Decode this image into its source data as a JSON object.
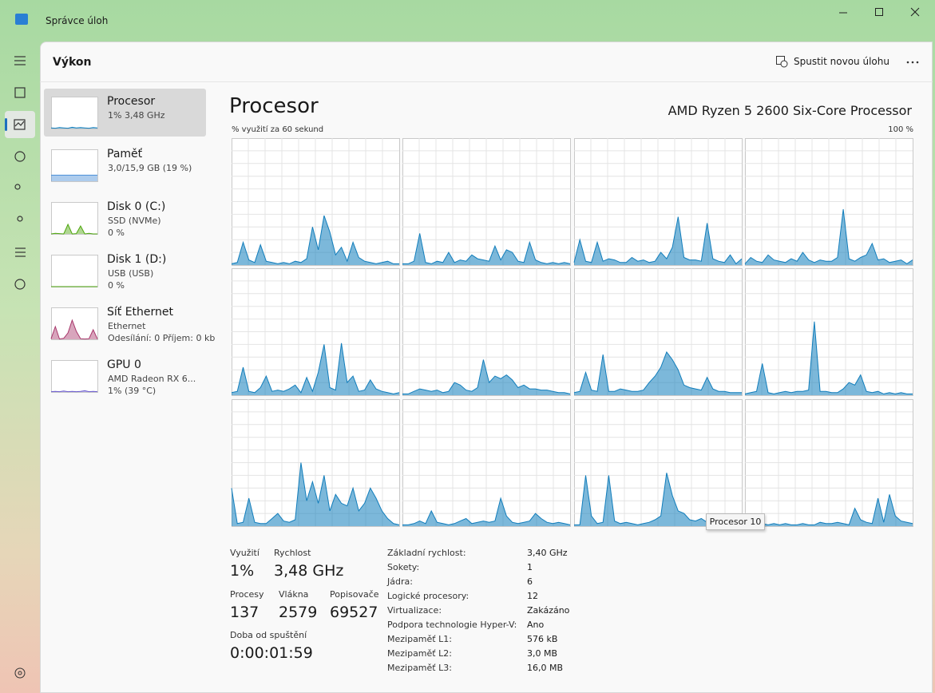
{
  "window": {
    "title": "Správce úloh"
  },
  "header": {
    "title": "Výkon",
    "run_task": "Spustit novou úlohu"
  },
  "sidebar": [
    {
      "name": "Procesor",
      "lines": [
        "1%  3,48 GHz"
      ],
      "color": "#117dbb",
      "values": [
        2,
        1,
        3,
        2,
        1,
        4,
        2,
        3,
        2,
        1,
        3,
        2
      ]
    },
    {
      "name": "Paměť",
      "lines": [
        "3,0/15,9 GB (19 %)"
      ],
      "color": "#4a8fd8",
      "values": [
        19,
        19,
        19,
        19,
        19,
        19,
        19,
        19,
        19,
        19,
        19,
        19
      ]
    },
    {
      "name": "Disk 0 (C:)",
      "lines": [
        "SSD (NVMe)",
        "0 %"
      ],
      "color": "#4da60c",
      "values": [
        0,
        2,
        1,
        0,
        30,
        0,
        1,
        25,
        0,
        2,
        0,
        0
      ]
    },
    {
      "name": "Disk 1 (D:)",
      "lines": [
        "USB (USB)",
        "0 %"
      ],
      "color": "#4da60c",
      "values": [
        0,
        0,
        0,
        0,
        0,
        0,
        0,
        0,
        0,
        0,
        0,
        0
      ]
    },
    {
      "name": "Síť Ethernet",
      "lines": [
        "Ethernet",
        "Odesílání: 0 Příjem: 0 kb"
      ],
      "color": "#a8376b",
      "values": [
        2,
        40,
        1,
        3,
        20,
        60,
        25,
        2,
        1,
        2,
        30,
        1
      ]
    },
    {
      "name": "GPU 0",
      "lines": [
        "AMD Radeon RX 6...",
        "1% (39 °C)"
      ],
      "color": "#6a5acd",
      "values": [
        1,
        2,
        1,
        3,
        1,
        2,
        1,
        2,
        4,
        1,
        2,
        1
      ]
    }
  ],
  "main": {
    "title": "Procesor",
    "model": "AMD Ryzen 5 2600 Six-Core Processor",
    "graph_label": "% využití za 60 sekund",
    "graph_max": "100 %",
    "ylim": [
      0,
      100
    ]
  },
  "cores": [
    {
      "values": [
        1,
        2,
        18,
        4,
        2,
        16,
        3,
        2,
        1,
        2,
        1,
        3,
        2,
        5,
        30,
        12,
        39,
        26,
        8,
        14,
        3,
        18,
        6,
        3,
        2,
        1,
        2,
        3,
        1,
        1
      ]
    },
    {
      "values": [
        1,
        1,
        3,
        25,
        2,
        1,
        3,
        2,
        10,
        2,
        4,
        3,
        8,
        5,
        4,
        3,
        15,
        4,
        12,
        10,
        3,
        2,
        18,
        4,
        2,
        1,
        2,
        1,
        2,
        1
      ]
    },
    {
      "values": [
        2,
        20,
        3,
        2,
        18,
        3,
        5,
        4,
        2,
        2,
        6,
        3,
        4,
        2,
        3,
        10,
        5,
        14,
        38,
        6,
        4,
        4,
        3,
        33,
        5,
        3,
        2,
        8,
        1,
        5
      ]
    },
    {
      "values": [
        1,
        6,
        3,
        2,
        8,
        4,
        3,
        2,
        5,
        3,
        10,
        4,
        2,
        4,
        3,
        3,
        6,
        44,
        5,
        3,
        6,
        8,
        17,
        4,
        5,
        2,
        3,
        4,
        1,
        4
      ]
    },
    {
      "values": [
        2,
        3,
        22,
        3,
        2,
        6,
        15,
        3,
        4,
        3,
        5,
        8,
        2,
        14,
        3,
        18,
        40,
        6,
        4,
        41,
        10,
        15,
        3,
        4,
        12,
        5,
        3,
        2,
        1,
        2
      ]
    },
    {
      "values": [
        1,
        1,
        3,
        5,
        4,
        3,
        4,
        2,
        3,
        10,
        8,
        4,
        3,
        6,
        28,
        10,
        15,
        13,
        16,
        12,
        6,
        8,
        5,
        5,
        4,
        4,
        3,
        2,
        2,
        1
      ]
    },
    {
      "values": [
        2,
        3,
        18,
        4,
        3,
        32,
        3,
        3,
        5,
        4,
        3,
        3,
        4,
        10,
        15,
        22,
        34,
        28,
        20,
        8,
        6,
        5,
        4,
        14,
        5,
        3,
        3,
        2,
        2,
        2
      ]
    },
    {
      "values": [
        1,
        2,
        3,
        25,
        2,
        1,
        2,
        3,
        2,
        3,
        3,
        4,
        58,
        3,
        3,
        2,
        2,
        5,
        10,
        8,
        16,
        3,
        2,
        3,
        1,
        2,
        1,
        2,
        1,
        1
      ]
    },
    {
      "values": [
        30,
        2,
        3,
        22,
        3,
        2,
        2,
        6,
        10,
        4,
        3,
        5,
        50,
        20,
        35,
        18,
        40,
        12,
        25,
        18,
        16,
        30,
        12,
        18,
        30,
        22,
        12,
        6,
        2,
        1
      ]
    },
    {
      "values": [
        1,
        1,
        2,
        4,
        2,
        12,
        3,
        2,
        1,
        2,
        4,
        6,
        2,
        3,
        4,
        3,
        4,
        22,
        8,
        3,
        2,
        3,
        4,
        10,
        6,
        3,
        2,
        3,
        2,
        1
      ]
    },
    {
      "values": [
        1,
        1,
        40,
        8,
        2,
        3,
        40,
        4,
        2,
        3,
        2,
        1,
        2,
        3,
        5,
        8,
        42,
        24,
        12,
        10,
        5,
        4,
        6,
        3,
        8,
        2,
        3,
        2,
        1,
        1
      ]
    },
    {
      "values": [
        1,
        1,
        1,
        2,
        1,
        2,
        1,
        2,
        1,
        1,
        2,
        1,
        1,
        3,
        2,
        2,
        3,
        2,
        1,
        14,
        5,
        3,
        2,
        22,
        3,
        25,
        8,
        4,
        3,
        2
      ]
    }
  ],
  "tooltip": "Procesor 10",
  "stats": [
    {
      "label": "Využití",
      "value": "1%"
    },
    {
      "label": "Rychlost",
      "value": "3,48 GHz"
    },
    {
      "label": "Procesy",
      "value": 137
    },
    {
      "label": "Vlákna",
      "value": 2579
    },
    {
      "label": "Popisovače",
      "value": 69527
    },
    {
      "label": "Doba od spuštění",
      "value": "0:00:01:59"
    }
  ],
  "specs": [
    {
      "label": "Základní rychlost:",
      "value": "3,40 GHz"
    },
    {
      "label": "Sokety:",
      "value": 1
    },
    {
      "label": "Jádra:",
      "value": 6
    },
    {
      "label": "Logické procesory:",
      "value": 12
    },
    {
      "label": "Virtualizace:",
      "value": "Zakázáno"
    },
    {
      "label": "Podpora technologie Hyper-V:",
      "value": "Ano"
    },
    {
      "label": "Mezipaměť L1:",
      "value": "576 kB"
    },
    {
      "label": "Mezipaměť L2:",
      "value": "3,0 MB"
    },
    {
      "label": "Mezipaměť L3:",
      "value": "16,0 MB"
    }
  ]
}
